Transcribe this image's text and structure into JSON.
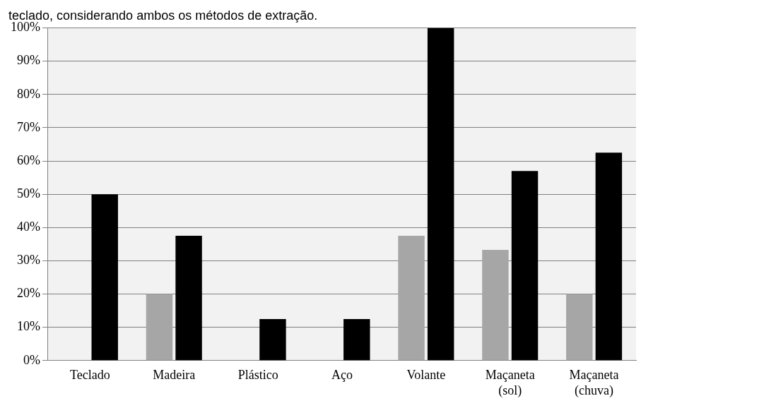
{
  "chart_data": {
    "type": "bar",
    "title": "teclado, considerando ambos os métodos de extração.",
    "categories": [
      "Teclado",
      "Madeira",
      "Plástico",
      "Aço",
      "Volante",
      "Maçaneta (sol)",
      "Maçaneta (chuva)"
    ],
    "series": [
      {
        "color": "#a6a6a6",
        "values": [
          0,
          20,
          0,
          0,
          37.5,
          33.3,
          20
        ]
      },
      {
        "color": "#000000",
        "values": [
          50,
          37.5,
          12.5,
          12.5,
          100,
          57,
          62.5
        ]
      }
    ],
    "ylim": [
      0,
      100
    ],
    "yticks": [
      {
        "value": 0,
        "label": "0%"
      },
      {
        "value": 10,
        "label": "10%"
      },
      {
        "value": 20,
        "label": "20%"
      },
      {
        "value": 30,
        "label": "30%"
      },
      {
        "value": 40,
        "label": "40%"
      },
      {
        "value": 50,
        "label": "50%"
      },
      {
        "value": 60,
        "label": "60%"
      },
      {
        "value": 70,
        "label": "70%"
      },
      {
        "value": 80,
        "label": "80%"
      },
      {
        "value": 90,
        "label": "90%"
      },
      {
        "value": 100,
        "label": "100%"
      }
    ],
    "grid": "y"
  }
}
